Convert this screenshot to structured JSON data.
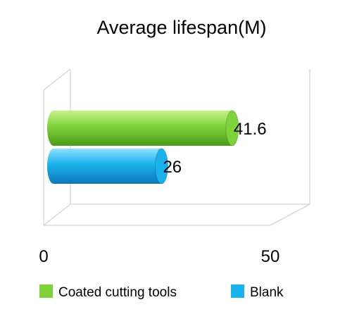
{
  "chart_data": {
    "type": "bar",
    "orientation": "horizontal",
    "style": "3d-cylinder",
    "title": "Average lifespan(M)",
    "xlabel": "",
    "ylabel": "",
    "xlim": [
      0,
      50
    ],
    "x_ticks": [
      "0",
      "50"
    ],
    "grid": false,
    "legend_position": "bottom",
    "series": [
      {
        "name": "Coated cutting tools",
        "value": 41.6,
        "label": "41.6",
        "color": "#7ed23a"
      },
      {
        "name": "Blank",
        "value": 26,
        "label": "26",
        "color": "#1ab2ec"
      }
    ]
  }
}
